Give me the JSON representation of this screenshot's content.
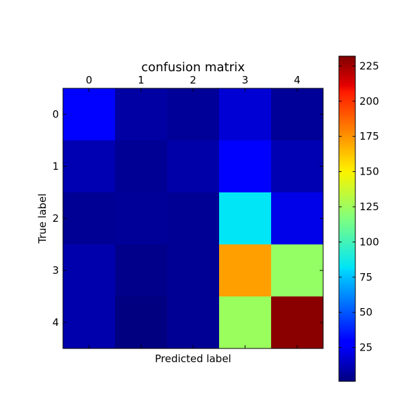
{
  "chart_data": {
    "type": "heatmap",
    "title": "confusion matrix",
    "xlabel": "Predicted label",
    "ylabel": "True label",
    "x_categories": [
      "0",
      "1",
      "2",
      "3",
      "4"
    ],
    "y_categories": [
      "0",
      "1",
      "2",
      "3",
      "4"
    ],
    "values": [
      [
        30,
        8,
        6,
        18,
        6
      ],
      [
        11,
        5,
        9,
        28,
        11
      ],
      [
        5,
        6,
        5,
        82,
        22
      ],
      [
        10,
        3,
        5,
        172,
        123
      ],
      [
        10,
        1,
        5,
        125,
        230
      ]
    ],
    "colorbar": {
      "colormap": "jet",
      "range": [
        1,
        232
      ],
      "ticks": [
        25,
        50,
        75,
        100,
        125,
        150,
        175,
        200,
        225
      ]
    },
    "x_axis_position": "top",
    "grid": false
  }
}
